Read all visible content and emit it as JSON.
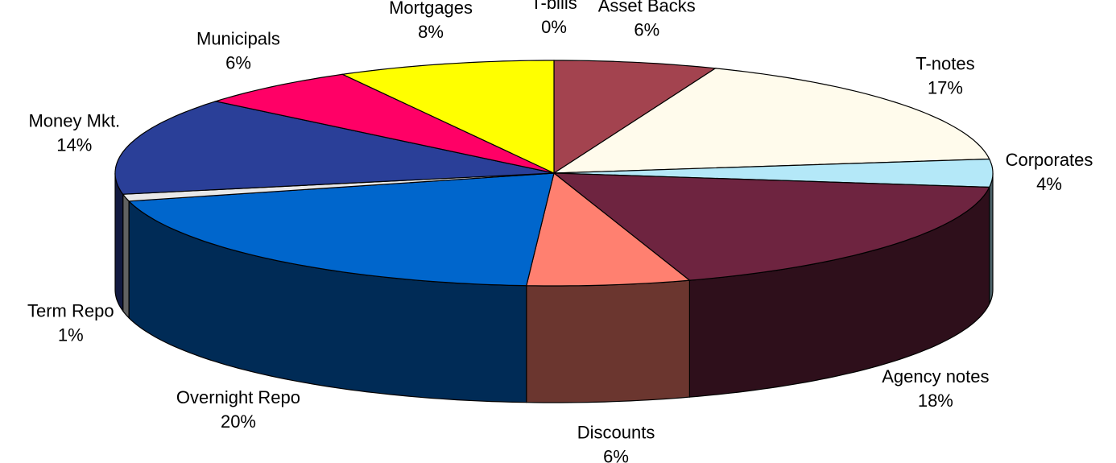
{
  "chart_data": {
    "type": "pie3d",
    "categories": [
      "T-bills",
      "Asset Backs",
      "T-notes",
      "Corporates",
      "Agency notes",
      "Discounts",
      "Overnight Repo",
      "Term Repo",
      "Money Mkt.",
      "Municipals",
      "Mortgages"
    ],
    "values": [
      0,
      6,
      17,
      4,
      18,
      6,
      20,
      1,
      14,
      6,
      8
    ],
    "value_labels": [
      "0%",
      "6%",
      "17%",
      "4%",
      "18%",
      "6%",
      "20%",
      "1%",
      "14%",
      "6%",
      "8%"
    ],
    "colors": [
      "#d0d0d0",
      "#a3434f",
      "#fffbec",
      "#b4e8f8",
      "#6e2440",
      "#ff8070",
      "#0066cc",
      "#e8e8e8",
      "#2a3f98",
      "#ff0066",
      "#ffff00"
    ]
  }
}
